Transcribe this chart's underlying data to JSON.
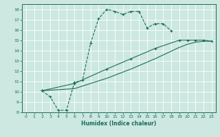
{
  "xlabel": "Humidex (Indice chaleur)",
  "ylabel": "",
  "xlim": [
    -0.5,
    23.5
  ],
  "ylim": [
    8,
    18.5
  ],
  "xticks": [
    0,
    1,
    2,
    3,
    4,
    5,
    6,
    7,
    8,
    9,
    10,
    11,
    12,
    13,
    14,
    15,
    16,
    17,
    18,
    19,
    20,
    21,
    22,
    23
  ],
  "yticks": [
    8,
    9,
    10,
    11,
    12,
    13,
    14,
    15,
    16,
    17,
    18
  ],
  "bg_color": "#cce8e0",
  "line_color": "#1a6b5a",
  "grid_color": "#ffffff",
  "line1_x": [
    2,
    3,
    4,
    5,
    6,
    7,
    8,
    9,
    10,
    11,
    12,
    13,
    14,
    15,
    16,
    17,
    18
  ],
  "line1_y": [
    10.1,
    9.5,
    8.2,
    8.2,
    10.9,
    11.1,
    14.7,
    17.1,
    18.0,
    17.8,
    17.5,
    17.8,
    17.8,
    16.2,
    16.6,
    16.6,
    15.9
  ],
  "line2_x": [
    2,
    6,
    10,
    13,
    16,
    19,
    20,
    21,
    22,
    23
  ],
  "line2_y": [
    10.1,
    10.8,
    12.2,
    13.2,
    14.2,
    15.0,
    15.0,
    15.0,
    15.0,
    14.9
  ],
  "line3_x": [
    2,
    6,
    10,
    13,
    16,
    19,
    20,
    21,
    22,
    23
  ],
  "line3_y": [
    10.1,
    10.3,
    11.3,
    12.2,
    13.2,
    14.3,
    14.6,
    14.8,
    14.9,
    14.9
  ]
}
